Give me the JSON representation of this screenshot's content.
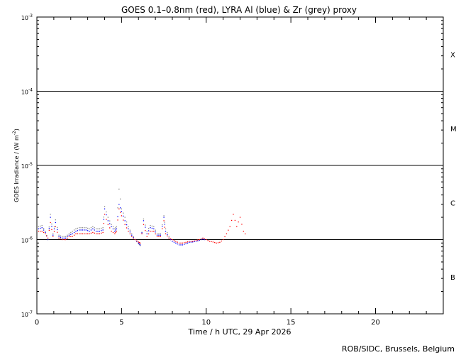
{
  "chart_data": {
    "type": "scatter",
    "title": "GOES 0.1–0.8nm (red), LYRA Al (blue) & Zr (grey) proxy",
    "xlabel": "Time / h UTC, 29 Apr 2026",
    "ylabel": "GOES Irradiance / (W m",
    "ylabel_sup": "-2",
    "ylabel_close": ")",
    "credit": "ROB/SIDC, Brussels, Belgium",
    "xlim": [
      0,
      24
    ],
    "ylim_log10": [
      -7,
      -3
    ],
    "y_scale": "log",
    "x_ticks": [
      "0",
      "5",
      "10",
      "15",
      "20"
    ],
    "y_ticks": [
      {
        "base": "10",
        "exp": "-3",
        "log": -3
      },
      {
        "base": "10",
        "exp": "-4",
        "log": -4
      },
      {
        "base": "10",
        "exp": "-5",
        "log": -5
      },
      {
        "base": "10",
        "exp": "-6",
        "log": -6
      },
      {
        "base": "10",
        "exp": "-7",
        "log": -7
      }
    ],
    "flare_classes": [
      {
        "label": "X",
        "log": -3.5
      },
      {
        "label": "M",
        "log": -4.5
      },
      {
        "label": "C",
        "log": -5.5
      },
      {
        "label": "B",
        "log": -6.5
      }
    ],
    "threshold_lines_log": [
      -4,
      -5,
      -6
    ],
    "colors": {
      "goes": "#ff0000",
      "lyra_al": "#0000ff",
      "lyra_zr": "#888888",
      "axis": "#000000"
    },
    "series": [
      {
        "name": "GOES 0.1–0.8nm",
        "color": "#ff0000",
        "x": [
          0.1,
          0.3,
          0.5,
          0.65,
          0.8,
          0.95,
          1.1,
          1.3,
          1.5,
          1.7,
          1.9,
          2.1,
          2.3,
          2.5,
          2.7,
          2.9,
          3.1,
          3.3,
          3.5,
          3.7,
          3.9,
          4.0,
          4.2,
          4.4,
          4.6,
          4.7,
          4.85,
          5.0,
          5.2,
          5.4,
          5.6,
          5.8,
          6.0,
          6.1,
          6.3,
          6.5,
          6.7,
          6.9,
          7.1,
          7.3,
          7.5,
          7.6,
          7.8,
          8.0,
          8.2,
          8.4,
          8.6,
          8.8,
          9.0,
          9.2,
          9.4,
          9.6,
          9.8,
          10.0,
          10.2,
          10.4,
          10.6,
          10.8,
          11.0,
          11.2,
          11.4,
          11.6,
          11.8,
          12.0,
          12.2,
          12.4
        ],
        "y": [
          1.3e-06,
          1.3e-06,
          1.2e-06,
          1.05e-06,
          1.7e-06,
          1.1e-06,
          1.5e-06,
          1.05e-06,
          1e-06,
          1e-06,
          1.1e-06,
          1.1e-06,
          1.2e-06,
          1.2e-06,
          1.2e-06,
          1.2e-06,
          1.2e-06,
          1.25e-06,
          1.2e-06,
          1.2e-06,
          1.25e-06,
          2.2e-06,
          1.6e-06,
          1.3e-06,
          1.2e-06,
          1.3e-06,
          2.6e-06,
          2.1e-06,
          1.6e-06,
          1.3e-06,
          1.1e-06,
          1e-06,
          9.3e-07,
          9e-07,
          1.6e-06,
          1.1e-06,
          1.3e-06,
          1.3e-06,
          1.1e-06,
          1.1e-06,
          1.8e-06,
          1.2e-06,
          1.05e-06,
          1e-06,
          9.5e-07,
          9e-07,
          9e-07,
          9.2e-07,
          9.5e-07,
          9.5e-07,
          9.8e-07,
          1e-06,
          1.05e-06,
          1e-06,
          9.5e-07,
          9.3e-07,
          9e-07,
          9.2e-07,
          1e-06,
          1.2e-06,
          1.5e-06,
          2.2e-06,
          1.5e-06,
          2e-06,
          1.3e-06,
          1.1e-06
        ]
      },
      {
        "name": "LYRA Al proxy",
        "color": "#0000ff",
        "x": [
          0.1,
          0.3,
          0.5,
          0.65,
          0.8,
          0.95,
          1.1,
          1.3,
          1.5,
          1.7,
          1.9,
          2.1,
          2.3,
          2.5,
          2.7,
          2.9,
          3.1,
          3.3,
          3.5,
          3.7,
          3.9,
          4.0,
          4.2,
          4.4,
          4.6,
          4.7,
          4.85,
          5.0,
          5.2,
          5.4,
          5.6,
          5.8,
          6.0,
          6.1,
          6.3,
          6.5,
          6.7,
          6.9,
          7.1,
          7.3,
          7.5,
          7.6,
          7.8,
          8.0,
          8.2,
          8.4,
          8.6,
          8.8,
          9.0,
          9.2,
          9.4,
          9.6,
          9.8,
          10.0
        ],
        "y": [
          1.4e-06,
          1.45e-06,
          1.25e-06,
          1e-06,
          2e-06,
          1.15e-06,
          1.7e-06,
          1.1e-06,
          1.05e-06,
          1.05e-06,
          1.15e-06,
          1.2e-06,
          1.3e-06,
          1.35e-06,
          1.35e-06,
          1.35e-06,
          1.3e-06,
          1.4e-06,
          1.3e-06,
          1.3e-06,
          1.35e-06,
          2.6e-06,
          1.8e-06,
          1.5e-06,
          1.3e-06,
          1.4e-06,
          3e-06,
          2.4e-06,
          1.8e-06,
          1.4e-06,
          1.15e-06,
          1e-06,
          9e-07,
          8.5e-07,
          1.8e-06,
          1.2e-06,
          1.45e-06,
          1.4e-06,
          1.15e-06,
          1.15e-06,
          2e-06,
          1.3e-06,
          1.05e-06,
          9.5e-07,
          9e-07,
          8.5e-07,
          8.5e-07,
          8.8e-07,
          9.2e-07,
          9.3e-07,
          9.5e-07,
          9.8e-07,
          1.02e-06,
          9.8e-07
        ]
      },
      {
        "name": "LYRA Zr proxy",
        "color": "#888888",
        "x": [
          0.1,
          0.3,
          0.5,
          0.65,
          0.8,
          0.95,
          1.1,
          1.3,
          1.5,
          1.7,
          1.9,
          2.1,
          2.3,
          2.5,
          2.7,
          2.9,
          3.1,
          3.3,
          3.5,
          3.7,
          3.9,
          4.0,
          4.2,
          4.4,
          4.6,
          4.7,
          4.85,
          5.0,
          5.2,
          5.4,
          5.6,
          5.8,
          6.0,
          6.1,
          6.3,
          6.5,
          6.7,
          6.9,
          7.1,
          7.3,
          7.5,
          7.6,
          7.8,
          8.0
        ],
        "y": [
          1.5e-06,
          1.55e-06,
          1.3e-06,
          1e-06,
          2.2e-06,
          1.2e-06,
          1.85e-06,
          1.15e-06,
          1.1e-06,
          1.1e-06,
          1.2e-06,
          1.3e-06,
          1.4e-06,
          1.45e-06,
          1.45e-06,
          1.45e-06,
          1.4e-06,
          1.5e-06,
          1.4e-06,
          1.4e-06,
          1.45e-06,
          2.8e-06,
          2e-06,
          1.6e-06,
          1.4e-06,
          1.5e-06,
          4.8e-06,
          2.6e-06,
          2e-06,
          1.5e-06,
          1.2e-06,
          1e-06,
          8.8e-07,
          8.3e-07,
          1.9e-06,
          1.3e-06,
          1.55e-06,
          1.5e-06,
          1.2e-06,
          1.2e-06,
          2.1e-06,
          1.4e-06,
          1.1e-06,
          9.5e-07
        ]
      }
    ]
  }
}
